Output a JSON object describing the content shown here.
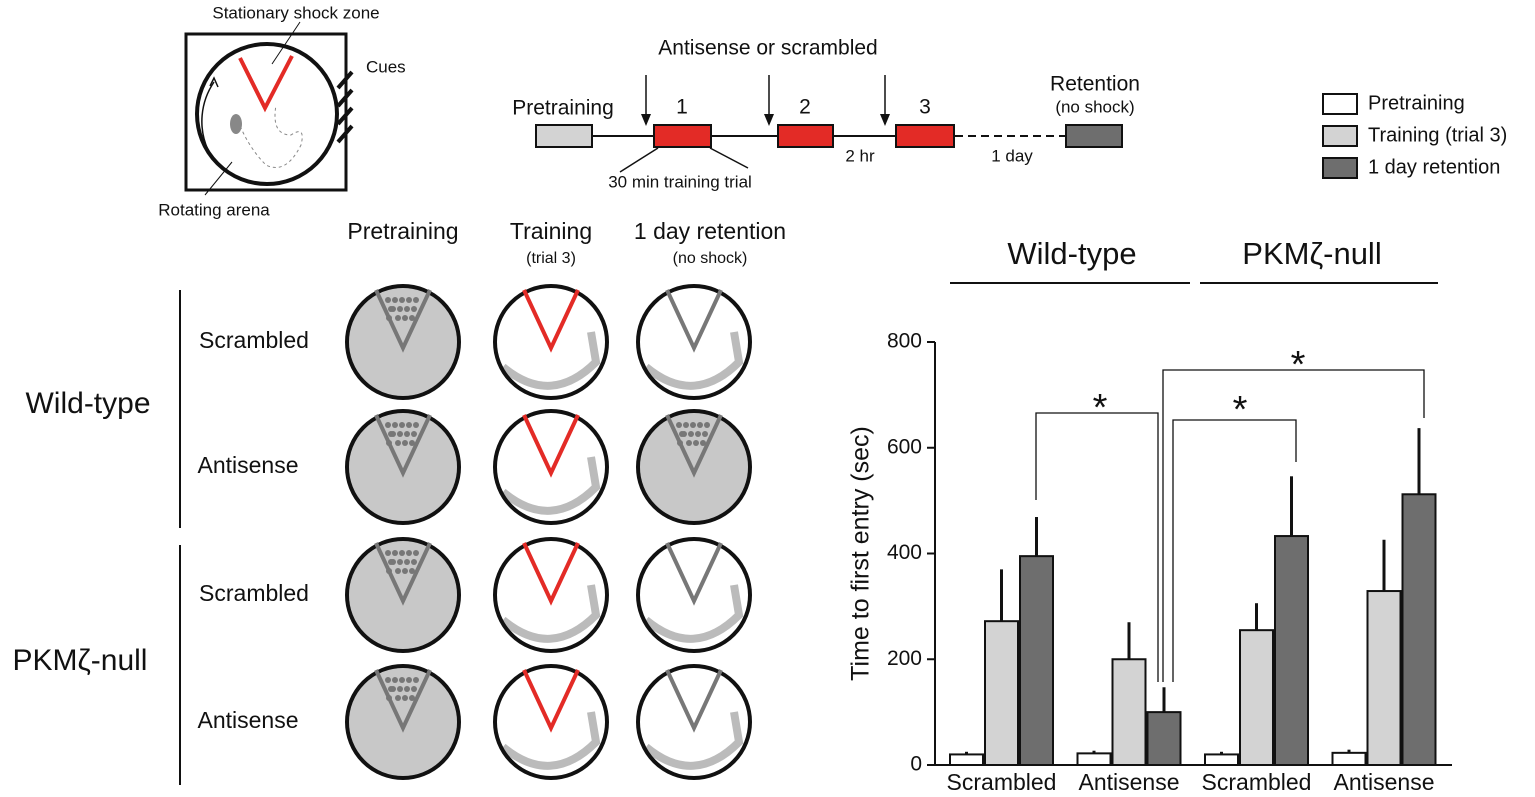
{
  "schematic": {
    "shock_zone": "Stationary shock zone",
    "cues": "Cues",
    "arena": "Rotating arena"
  },
  "timeline": {
    "drug": "Antisense or scrambled",
    "pretraining": "Pretraining",
    "trials": [
      "1",
      "2",
      "3"
    ],
    "retention": "Retention",
    "retention_note": "(no shock)",
    "trial_note": "30 min training trial",
    "interval": "2 hr",
    "delay": "1 day"
  },
  "tracks": {
    "columns": [
      "Pretraining",
      "Training",
      "1 day retention"
    ],
    "column_notes": [
      null,
      "(trial 3)",
      "(no shock)"
    ],
    "rows": [
      "Scrambled",
      "Antisense",
      "Scrambled",
      "Antisense"
    ],
    "groups": [
      "Wild-type",
      "PKMζ-null"
    ]
  },
  "chart_data": {
    "type": "bar",
    "ylabel": "Time to first entry (sec)",
    "categories": [
      "Scrambled",
      "Antisense",
      "Scrambled",
      "Antisense"
    ],
    "groups": [
      "Wild-type",
      "PKMζ-null"
    ],
    "series": [
      {
        "name": "Pretraining",
        "color": "#ffffff",
        "values": [
          20,
          22,
          20,
          23
        ],
        "errors": [
          5,
          5,
          5,
          6
        ]
      },
      {
        "name": "Training (trial 3)",
        "color": "#d3d3d3",
        "values": [
          272,
          200,
          255,
          329
        ],
        "errors": [
          98,
          70,
          51,
          97
        ]
      },
      {
        "name": "1 day retention",
        "color": "#6e6e6e",
        "values": [
          395,
          100,
          433,
          512
        ],
        "errors": [
          74,
          47,
          113,
          125
        ]
      }
    ],
    "annotations": [
      "*",
      "*",
      "*"
    ],
    "ylim": [
      0,
      800
    ],
    "yticks": [
      0,
      200,
      400,
      600,
      800
    ]
  }
}
